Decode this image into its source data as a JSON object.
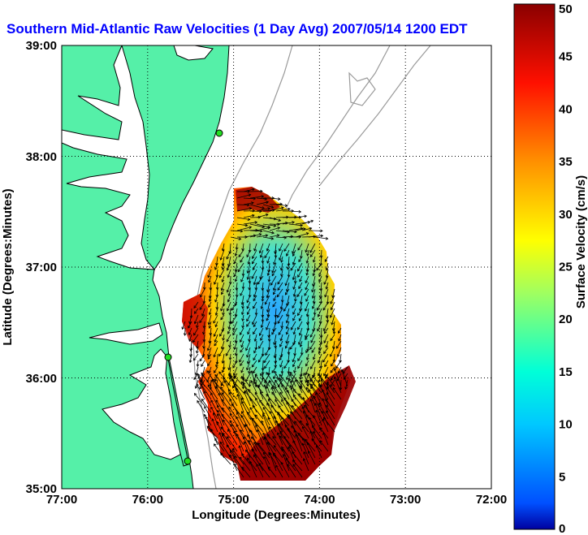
{
  "title": "Southern Mid-Atlantic Raw Velocities (1 Day Avg) 2007/05/14 1200 EDT",
  "map": {
    "xlabel": "Longitude (Degrees:Minutes)",
    "ylabel": "Latitude (Degrees:Minutes)",
    "x_ticks": [
      "77:00",
      "76:00",
      "75:00",
      "74:00",
      "73:00",
      "72:00"
    ],
    "y_ticks": [
      "39:00",
      "38:00",
      "37:00",
      "36:00",
      "35:00"
    ],
    "lon_range": [
      -77,
      -72
    ],
    "lat_range": [
      35,
      39
    ],
    "grid": "dotted",
    "colors": {
      "land": "#55f0a8",
      "water": "#ffffff",
      "bathymetry": "#9a9a9a",
      "station": "#22dd22"
    }
  },
  "colorbar": {
    "label": "Surface Velocity (cm/s)",
    "range": [
      0,
      50
    ],
    "tick_labels": [
      "50",
      "45",
      "40",
      "35",
      "30",
      "25",
      "20",
      "15",
      "10",
      "5",
      "0"
    ],
    "colormap": "jet"
  }
}
